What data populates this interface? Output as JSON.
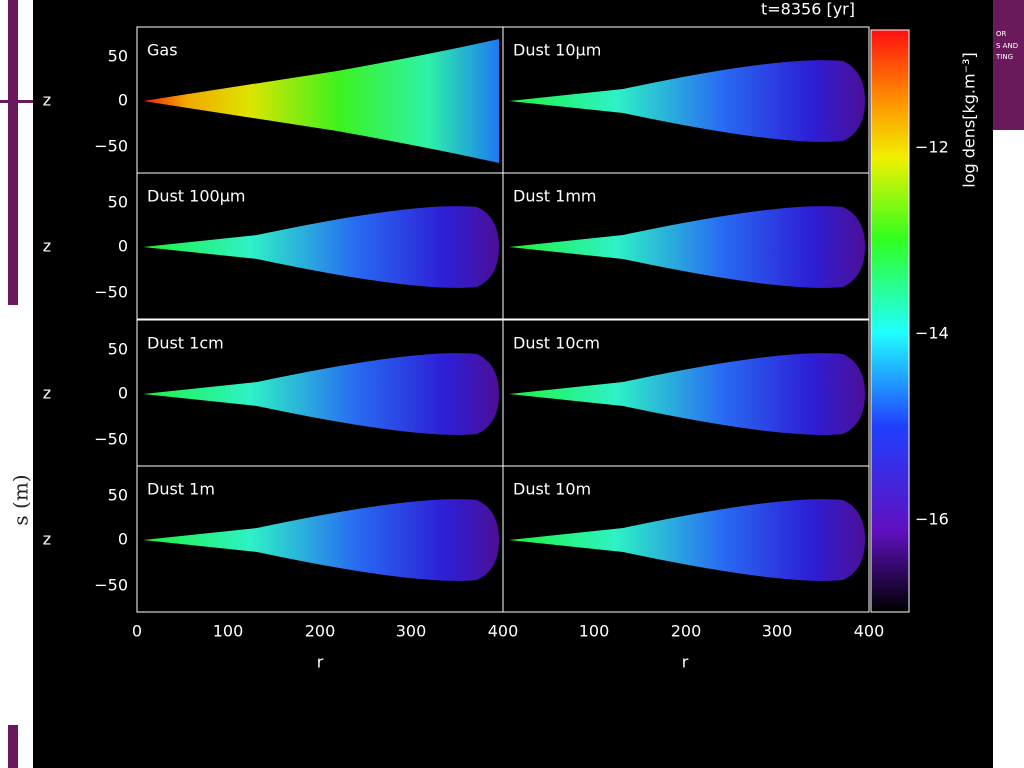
{
  "time_label": "t=8356 [yr]",
  "panels": [
    {
      "label": "Gas"
    },
    {
      "label": "Dust 10μm"
    },
    {
      "label": "Dust 100μm"
    },
    {
      "label": "Dust 1mm"
    },
    {
      "label": "Dust 1cm"
    },
    {
      "label": "Dust 10cm"
    },
    {
      "label": "Dust 1m"
    },
    {
      "label": "Dust 10m"
    }
  ],
  "x_axis": {
    "label": "r",
    "left_ticks": [
      "0",
      "100",
      "200",
      "300",
      "400"
    ],
    "right_ticks": [
      "100",
      "200",
      "300",
      "400"
    ]
  },
  "y_axis": {
    "label": "z",
    "ticks": [
      "50",
      "0",
      "−50"
    ]
  },
  "colorbar": {
    "label": "log dens[kg.m⁻³]",
    "ticks": [
      "−12",
      "−14",
      "−16"
    ]
  },
  "slide": {
    "side_text": "s (m)",
    "logo_lines": [
      "OR",
      "S AND",
      "TING"
    ]
  }
}
